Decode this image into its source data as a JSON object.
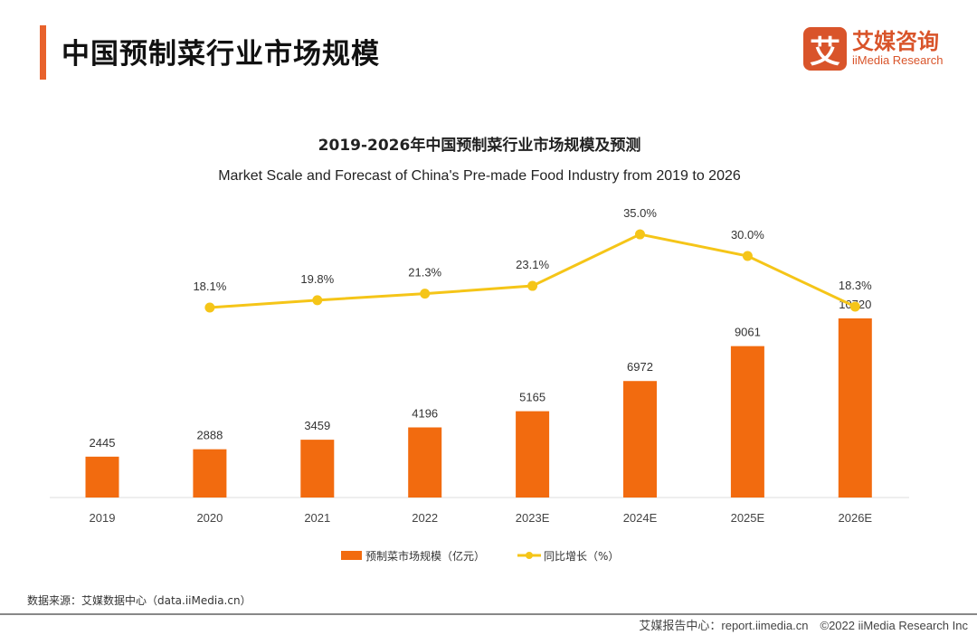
{
  "header": {
    "title": "中国预制菜行业市场规模"
  },
  "logo": {
    "mark": "艾",
    "cn": "艾媒咨询",
    "en": "iiMedia Research"
  },
  "chart_data": {
    "type": "bar+line",
    "title": "2019-2026年中国预制菜行业市场规模及预测",
    "subtitle": "Market Scale and Forecast of China's Pre-made Food Industry from 2019 to 2026",
    "categories": [
      "2019",
      "2020",
      "2021",
      "2022",
      "2023E",
      "2024E",
      "2025E",
      "2026E"
    ],
    "series": [
      {
        "name": "预制菜市场规模（亿元）",
        "type": "bar",
        "color": "#f26b0f",
        "values": [
          2445,
          2888,
          3459,
          4196,
          5165,
          6972,
          9061,
          10720
        ],
        "labels": [
          "2445",
          "2888",
          "3459",
          "4196",
          "5165",
          "6972",
          "9061",
          "10720"
        ]
      },
      {
        "name": "同比增长（%）",
        "type": "line",
        "color": "#f5c518",
        "values": [
          null,
          18.1,
          19.8,
          21.3,
          23.1,
          35.0,
          30.0,
          18.3
        ],
        "labels": [
          "",
          "18.1%",
          "19.8%",
          "21.3%",
          "23.1%",
          "35.0%",
          "30.0%",
          "18.3%"
        ]
      }
    ],
    "legend": "bottom",
    "grid": false
  },
  "source": "数据来源：艾媒数据中心（data.iiMedia.cn）",
  "footer": "艾媒报告中心：report.iimedia.cn　©2022  iiMedia Research  Inc"
}
